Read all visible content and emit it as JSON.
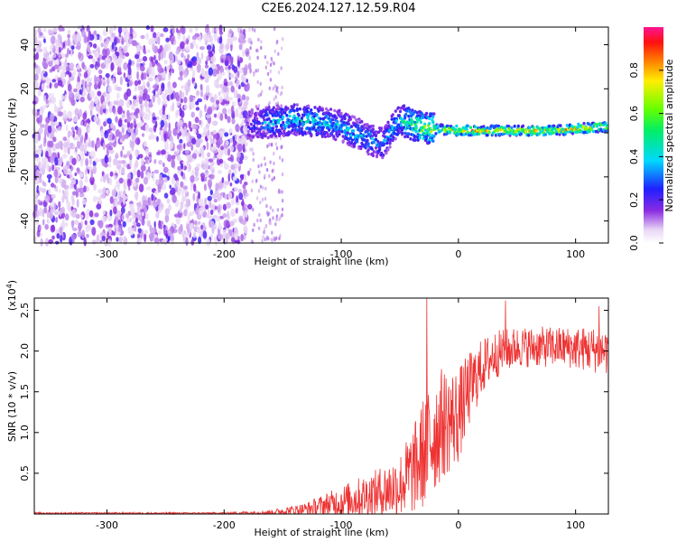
{
  "title": "C2E6.2024.127.12.59.R04",
  "chart_data": [
    {
      "type": "heatmap",
      "xlabel": "Height of straight line (km)",
      "ylabel": "Frequency (Hz)",
      "xlim": [
        -362,
        128
      ],
      "ylim": [
        -50,
        48
      ],
      "x_ticks": [
        -300,
        -200,
        -100,
        0,
        100
      ],
      "x_tick_labels": [
        "-300",
        "-200",
        "-100",
        "0",
        "100"
      ],
      "y_ticks": [
        -40,
        -20,
        0,
        20,
        40
      ],
      "y_tick_labels": [
        "-40",
        "-20",
        "0",
        "20",
        "40"
      ],
      "colorbar": {
        "label": "Normalized spectral amplitude",
        "range": [
          0,
          1
        ],
        "ticks": [
          0.0,
          0.2,
          0.4,
          0.6,
          0.8
        ],
        "tick_labels": [
          "0.0",
          "0.2",
          "0.4",
          "0.6",
          "0.8"
        ]
      },
      "features": {
        "noise_region_x": [
          -362,
          -178
        ],
        "sparse_noise_x": [
          -178,
          -150
        ],
        "signal_track": [
          {
            "x": -180,
            "freq": 3,
            "amp": 0.25
          },
          {
            "x": -160,
            "freq": 5,
            "amp": 0.4
          },
          {
            "x": -140,
            "freq": 6,
            "amp": 0.45
          },
          {
            "x": -120,
            "freq": 5,
            "amp": 0.45
          },
          {
            "x": -100,
            "freq": 3,
            "amp": 0.4
          },
          {
            "x": -80,
            "freq": -2,
            "amp": 0.4
          },
          {
            "x": -65,
            "freq": -5,
            "amp": 0.35
          },
          {
            "x": -50,
            "freq": 6,
            "amp": 0.45
          },
          {
            "x": -30,
            "freq": 2,
            "amp": 0.65
          },
          {
            "x": 0,
            "freq": 1,
            "amp": 0.8
          },
          {
            "x": 40,
            "freq": 1,
            "amp": 0.8
          },
          {
            "x": 80,
            "freq": 1,
            "amp": 0.8
          },
          {
            "x": 128,
            "freq": 3,
            "amp": 0.75
          }
        ]
      }
    },
    {
      "type": "line",
      "xlabel": "Height of straight line (km)",
      "ylabel": "SNR (10 * v/v)",
      "y_multiplier_label": "(x10^4)",
      "xlim": [
        -362,
        128
      ],
      "ylim": [
        0,
        2.65
      ],
      "x_ticks": [
        -300,
        -200,
        -100,
        0,
        100
      ],
      "x_tick_labels": [
        "-300",
        "-200",
        "-100",
        "0",
        "100"
      ],
      "y_ticks": [
        0.5,
        1.0,
        1.5,
        2.0,
        2.5
      ],
      "y_tick_labels": [
        "0.5",
        "1.0",
        "1.5",
        "2.0",
        "2.5"
      ],
      "series": [
        {
          "color": "#ee3333",
          "envelope": [
            {
              "x": -362,
              "mean": 0.01,
              "spread": 0.01
            },
            {
              "x": -200,
              "mean": 0.01,
              "spread": 0.01
            },
            {
              "x": -160,
              "mean": 0.02,
              "spread": 0.03
            },
            {
              "x": -130,
              "mean": 0.06,
              "spread": 0.08
            },
            {
              "x": -100,
              "mean": 0.15,
              "spread": 0.2
            },
            {
              "x": -70,
              "mean": 0.25,
              "spread": 0.3
            },
            {
              "x": -50,
              "mean": 0.35,
              "spread": 0.4
            },
            {
              "x": -35,
              "mean": 0.6,
              "spread": 0.6
            },
            {
              "x": -25,
              "mean": 0.9,
              "spread": 0.8
            },
            {
              "x": -15,
              "mean": 1.1,
              "spread": 0.7
            },
            {
              "x": 0,
              "mean": 1.2,
              "spread": 0.6
            },
            {
              "x": 10,
              "mean": 1.55,
              "spread": 0.45
            },
            {
              "x": 20,
              "mean": 1.8,
              "spread": 0.35
            },
            {
              "x": 30,
              "mean": 1.95,
              "spread": 0.3
            },
            {
              "x": 50,
              "mean": 2.05,
              "spread": 0.25
            },
            {
              "x": 90,
              "mean": 2.05,
              "spread": 0.25
            },
            {
              "x": 128,
              "mean": 2.0,
              "spread": 0.3
            }
          ],
          "spikes": [
            {
              "x": -27,
              "y": 2.65
            },
            {
              "x": 40,
              "y": 2.62
            },
            {
              "x": 120,
              "y": 2.55
            }
          ]
        }
      ]
    }
  ]
}
